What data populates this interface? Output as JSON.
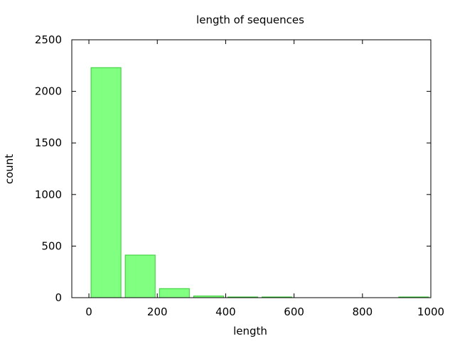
{
  "chart_data": {
    "type": "bar",
    "title": "length of sequences",
    "xlabel": "length",
    "ylabel": "count",
    "xlim": [
      -50,
      1000
    ],
    "ylim": [
      0,
      2500
    ],
    "x_ticks": [
      0,
      200,
      400,
      600,
      800,
      1000
    ],
    "y_ticks": [
      0,
      500,
      1000,
      1500,
      2000,
      2500
    ],
    "bin_width": 100,
    "bars": [
      {
        "x": 0,
        "value": 2230
      },
      {
        "x": 100,
        "value": 413
      },
      {
        "x": 200,
        "value": 88
      },
      {
        "x": 300,
        "value": 16
      },
      {
        "x": 400,
        "value": 5
      },
      {
        "x": 500,
        "value": 1
      },
      {
        "x": 600,
        "value": 0
      },
      {
        "x": 700,
        "value": 0
      },
      {
        "x": 800,
        "value": 0
      },
      {
        "x": 900,
        "value": 3
      }
    ],
    "bar_fill": "#80ff80",
    "bar_stroke": "#33cc33",
    "grid": false,
    "legend": "none"
  }
}
